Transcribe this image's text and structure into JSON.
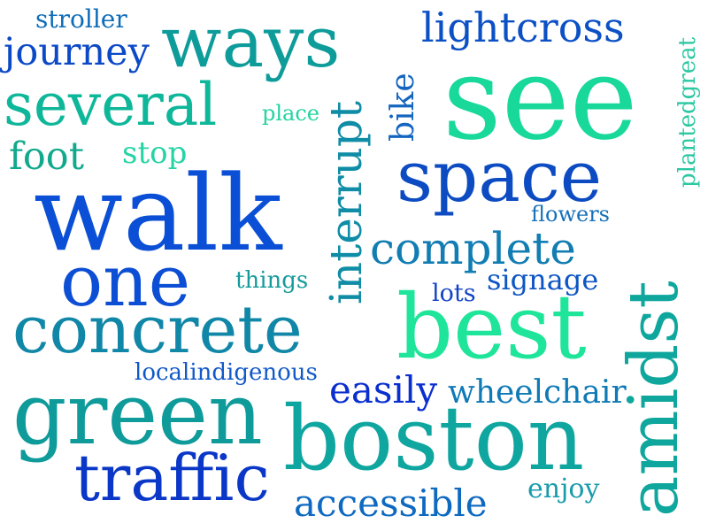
{
  "words": {
    "stroller": {
      "text": "stroller",
      "color": "#0f6db8"
    },
    "journey": {
      "text": "journey",
      "color": "#0c49c6"
    },
    "ways": {
      "text": "ways",
      "color": "#0e9c9b"
    },
    "several": {
      "text": "several",
      "color": "#0fb79a"
    },
    "place": {
      "text": "place",
      "color": "#23d3a0"
    },
    "foot": {
      "text": "foot",
      "color": "#11a98d"
    },
    "stop": {
      "text": "stop",
      "color": "#25d4a4"
    },
    "walk": {
      "text": "walk",
      "color": "#0a4fd6"
    },
    "one": {
      "text": "one",
      "color": "#0c4ed4"
    },
    "things": {
      "text": "things",
      "color": "#169b9a"
    },
    "concrete": {
      "text": "concrete",
      "color": "#1187a8"
    },
    "localindigenous": {
      "text": "localindigenous",
      "color": "#1159c9"
    },
    "green": {
      "text": "green",
      "color": "#0e9b9a"
    },
    "traffic": {
      "text": "traffic",
      "color": "#0a37c8"
    },
    "lightcross": {
      "text": "lightcross",
      "color": "#0c50c6"
    },
    "see": {
      "text": "see",
      "color": "#18d99a"
    },
    "interrupt": {
      "text": "interrupt",
      "color": "#0f8ca6"
    },
    "bike": {
      "text": "bike",
      "color": "#1465c0"
    },
    "space": {
      "text": "space",
      "color": "#0c4bc2"
    },
    "plantedgreat": {
      "text": "plantedgreat",
      "color": "#2bc8a2"
    },
    "flowers": {
      "text": "flowers",
      "color": "#1671ba"
    },
    "amidst": {
      "text": "amidst",
      "color": "#0fa79d"
    },
    "complete": {
      "text": "complete",
      "color": "#127db2"
    },
    "signage": {
      "text": "signage",
      "color": "#0d55c4"
    },
    "lots": {
      "text": "lots",
      "color": "#1242c7"
    },
    "best": {
      "text": "best",
      "color": "#1ee59a"
    },
    "easily": {
      "text": "easily",
      "color": "#0a2fd0"
    },
    "wheelchair": {
      "text": "wheelchair",
      "color": "#0f7ab6"
    },
    "boston": {
      "text": "boston",
      "color": "#10a6a0"
    },
    "accessible": {
      "text": "accessible",
      "color": "#0e69c0"
    },
    "enjoy": {
      "text": "enjoy",
      "color": "#179cab"
    }
  }
}
